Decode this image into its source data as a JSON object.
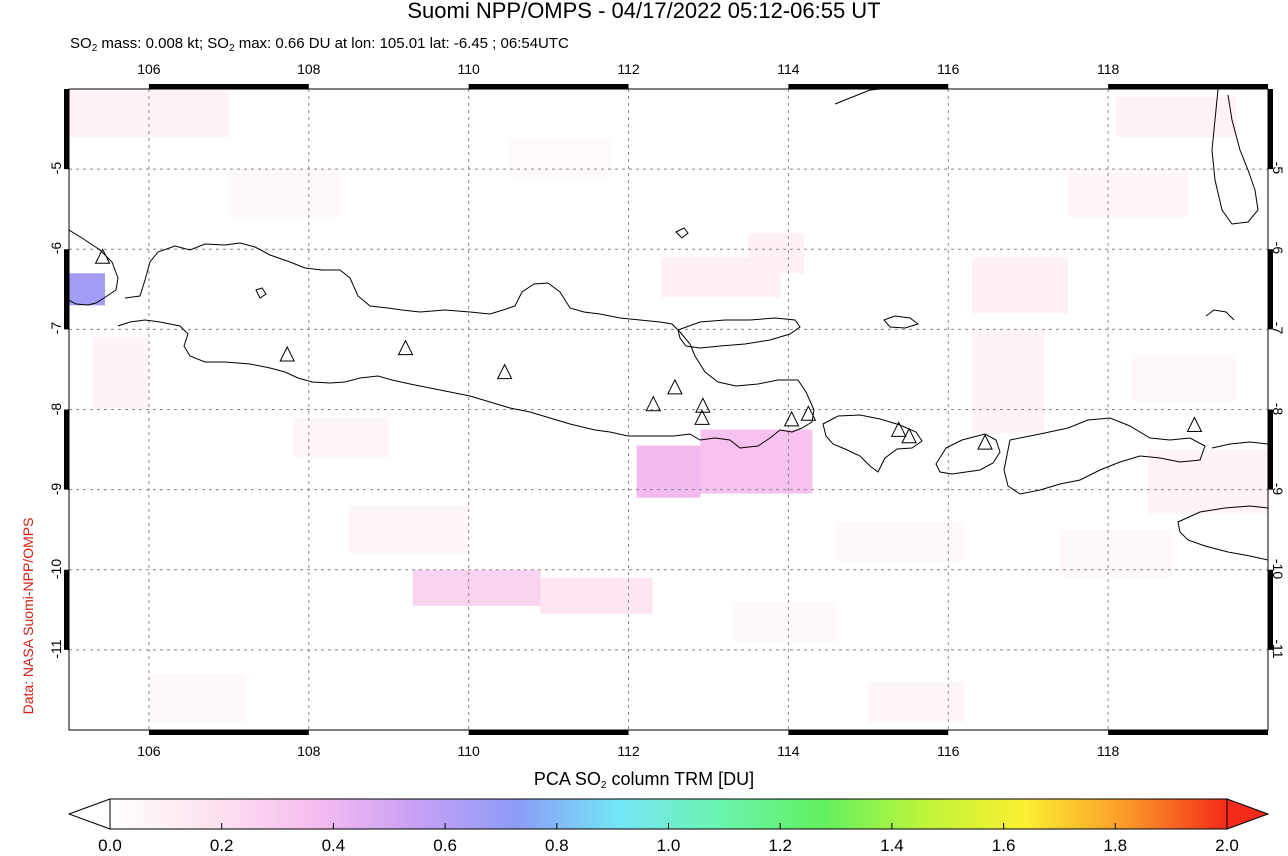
{
  "header": {
    "title": "Suomi NPP/OMPS - 04/17/2022 05:12-06:55 UT",
    "subtitle_pre": "SO",
    "subtitle_sub1": "2",
    "subtitle_mid": " mass: 0.008 kt; SO",
    "subtitle_sub2": "2",
    "subtitle_post": " max: 0.66 DU at lon: 105.01 lat: -6.45 ; 06:54UTC"
  },
  "credit": "Data: NASA Suomi-NPP/OMPS",
  "map": {
    "lon_range": [
      105.0,
      120.0
    ],
    "lat_range": [
      -12.0,
      -4.0
    ],
    "lon_ticks": [
      "106",
      "108",
      "110",
      "112",
      "114",
      "116",
      "118"
    ],
    "lat_ticks": [
      "-5",
      "-6",
      "-7",
      "-8",
      "-9",
      "-10",
      "-11"
    ],
    "grid": true,
    "volcano_icon": "triangle-icon",
    "volcanoes": [
      [
        105.42,
        -6.1
      ],
      [
        107.73,
        -7.32
      ],
      [
        109.21,
        -7.24
      ],
      [
        110.45,
        -7.54
      ],
      [
        112.31,
        -7.94
      ],
      [
        112.58,
        -7.73
      ],
      [
        112.93,
        -7.96
      ],
      [
        112.92,
        -8.11
      ],
      [
        114.04,
        -8.13
      ],
      [
        114.25,
        -8.06
      ],
      [
        115.38,
        -8.26
      ],
      [
        115.51,
        -8.34
      ],
      [
        116.46,
        -8.42
      ],
      [
        119.08,
        -8.2
      ]
    ],
    "so2_pixels": [
      {
        "lon": [
          105.0,
          105.45
        ],
        "lat": [
          -6.3,
          -6.7
        ],
        "du": 0.66
      },
      {
        "lon": [
          112.1,
          112.9
        ],
        "lat": [
          -8.45,
          -9.1
        ],
        "du": 0.38
      },
      {
        "lon": [
          112.9,
          114.3
        ],
        "lat": [
          -8.25,
          -9.05
        ],
        "du": 0.34
      },
      {
        "lon": [
          109.3,
          110.9
        ],
        "lat": [
          -10.0,
          -10.45
        ],
        "du": 0.26
      },
      {
        "lon": [
          110.9,
          112.3
        ],
        "lat": [
          -10.1,
          -10.55
        ],
        "du": 0.16
      },
      {
        "lon": [
          112.4,
          113.9
        ],
        "lat": [
          -6.1,
          -6.6
        ],
        "du": 0.1
      },
      {
        "lon": [
          113.5,
          114.2
        ],
        "lat": [
          -5.8,
          -6.3
        ],
        "du": 0.1
      },
      {
        "lon": [
          118.1,
          119.6
        ],
        "lat": [
          -4.1,
          -4.6
        ],
        "du": 0.08
      },
      {
        "lon": [
          116.3,
          117.5
        ],
        "lat": [
          -6.1,
          -6.8
        ],
        "du": 0.1
      },
      {
        "lon": [
          116.3,
          117.2
        ],
        "lat": [
          -7.0,
          -8.3
        ],
        "du": 0.08
      },
      {
        "lon": [
          105.0,
          107.0
        ],
        "lat": [
          -4.0,
          -4.6
        ],
        "du": 0.08
      },
      {
        "lon": [
          105.3,
          106.0
        ],
        "lat": [
          -7.1,
          -8.0
        ],
        "du": 0.07
      },
      {
        "lon": [
          118.5,
          120.0
        ],
        "lat": [
          -8.5,
          -9.3
        ],
        "du": 0.08
      },
      {
        "lon": [
          107.8,
          109.0
        ],
        "lat": [
          -8.1,
          -8.6
        ],
        "du": 0.06
      },
      {
        "lon": [
          117.5,
          119.0
        ],
        "lat": [
          -5.0,
          -5.6
        ],
        "du": 0.06
      },
      {
        "lon": [
          108.5,
          110.0
        ],
        "lat": [
          -9.2,
          -9.8
        ],
        "du": 0.06
      },
      {
        "lon": [
          114.6,
          116.2
        ],
        "lat": [
          -9.4,
          -9.9
        ],
        "du": 0.05
      },
      {
        "lon": [
          117.4,
          118.8
        ],
        "lat": [
          -9.5,
          -10.1
        ],
        "du": 0.05
      },
      {
        "lon": [
          113.3,
          114.6
        ],
        "lat": [
          -10.4,
          -10.9
        ],
        "du": 0.05
      },
      {
        "lon": [
          115.0,
          116.2
        ],
        "lat": [
          -11.4,
          -11.9
        ],
        "du": 0.06
      },
      {
        "lon": [
          106.0,
          107.2
        ],
        "lat": [
          -11.3,
          -11.9
        ],
        "du": 0.05
      },
      {
        "lon": [
          110.5,
          111.8
        ],
        "lat": [
          -4.6,
          -5.1
        ],
        "du": 0.04
      },
      {
        "lon": [
          107.0,
          108.4
        ],
        "lat": [
          -5.0,
          -5.6
        ],
        "du": 0.05
      },
      {
        "lon": [
          118.3,
          119.6
        ],
        "lat": [
          -7.3,
          -7.9
        ],
        "du": 0.05
      }
    ]
  },
  "colorbar": {
    "title_pre": "PCA SO",
    "title_sub": "2",
    "title_post": " column TRM [DU]",
    "range": [
      0.0,
      2.0
    ],
    "tick_labels": [
      "0.0",
      "0.2",
      "0.4",
      "0.6",
      "0.8",
      "1.0",
      "1.2",
      "1.4",
      "1.6",
      "1.8",
      "2.0"
    ],
    "colors": [
      "#ffffff",
      "#fde3f0",
      "#f7bdf0",
      "#c9a0f5",
      "#8c9cf7",
      "#73e5f7",
      "#6cf5b0",
      "#60f060",
      "#bcf53a",
      "#fbf032",
      "#fb9a2a",
      "#f42a1a"
    ]
  }
}
